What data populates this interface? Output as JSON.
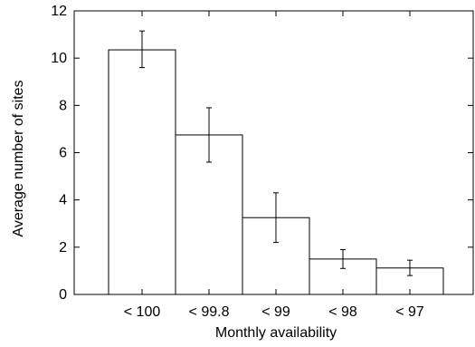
{
  "chart_data": {
    "type": "bar",
    "categories": [
      "< 100",
      "< 99.8",
      "< 99",
      "< 98",
      "< 97"
    ],
    "values": [
      10.35,
      6.75,
      3.25,
      1.5,
      1.12
    ],
    "error": [
      {
        "low": 9.6,
        "high": 11.15
      },
      {
        "low": 5.6,
        "high": 7.9
      },
      {
        "low": 2.2,
        "high": 4.3
      },
      {
        "low": 1.1,
        "high": 1.9
      },
      {
        "low": 0.8,
        "high": 1.45
      }
    ],
    "title": "",
    "xlabel": "Monthly availability",
    "ylabel": "Average number of sites",
    "ylim": [
      0,
      12
    ],
    "yticks": [
      0,
      2,
      4,
      6,
      8,
      10,
      12
    ],
    "grid": false
  }
}
